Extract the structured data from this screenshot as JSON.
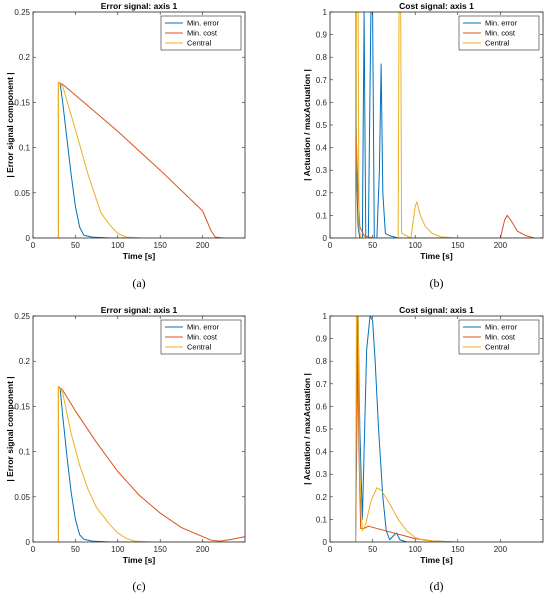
{
  "colors": {
    "min_error": "#0072BD",
    "min_cost": "#D95319",
    "central": "#EDB120"
  },
  "chart_data": [
    {
      "id": "a",
      "type": "line",
      "panel_label": "(a)",
      "title": "Error signal: axis 1",
      "xlabel": "Time [s]",
      "ylabel": "| Error signal component |",
      "xlim": [
        0,
        250
      ],
      "ylim": [
        0,
        0.25
      ],
      "xticks": [
        0,
        50,
        100,
        150,
        200
      ],
      "yticks": [
        0,
        0.05,
        0.1,
        0.15,
        0.2,
        0.25
      ],
      "ytick_labels": [
        "0",
        "0.05",
        "0.1",
        "0.15",
        "0.2",
        "0.25"
      ],
      "legend_position": "top-right",
      "grid": false,
      "series": [
        {
          "name": "Min. error",
          "color_key": "min_error",
          "points": [
            [
              0,
              0
            ],
            [
              30,
              0
            ],
            [
              30,
              0.172
            ],
            [
              32,
              0.171
            ],
            [
              35,
              0.15
            ],
            [
              40,
              0.11
            ],
            [
              45,
              0.07
            ],
            [
              50,
              0.035
            ],
            [
              55,
              0.012
            ],
            [
              60,
              0.003
            ],
            [
              70,
              0.001
            ],
            [
              90,
              0
            ],
            [
              250,
              0
            ]
          ]
        },
        {
          "name": "Min. cost",
          "color_key": "min_cost",
          "points": [
            [
              0,
              0
            ],
            [
              30,
              0
            ],
            [
              30,
              0.172
            ],
            [
              35,
              0.17
            ],
            [
              60,
              0.15
            ],
            [
              100,
              0.118
            ],
            [
              150,
              0.075
            ],
            [
              200,
              0.03
            ],
            [
              210,
              0.008
            ],
            [
              215,
              0.001
            ],
            [
              225,
              0
            ],
            [
              250,
              0
            ]
          ]
        },
        {
          "name": "Central",
          "color_key": "central",
          "points": [
            [
              0,
              0
            ],
            [
              30,
              0
            ],
            [
              30,
              0.172
            ],
            [
              35,
              0.168
            ],
            [
              50,
              0.12
            ],
            [
              65,
              0.07
            ],
            [
              80,
              0.028
            ],
            [
              90,
              0.015
            ],
            [
              100,
              0.005
            ],
            [
              110,
              0.001
            ],
            [
              130,
              0
            ],
            [
              250,
              0
            ]
          ]
        }
      ]
    },
    {
      "id": "b",
      "type": "line",
      "panel_label": "(b)",
      "title": "Cost signal: axis 1",
      "xlabel": "Time [s]",
      "ylabel": "| Actuation / maxActuation |",
      "xlim": [
        0,
        250
      ],
      "ylim": [
        0,
        1
      ],
      "xticks": [
        0,
        50,
        100,
        150,
        200
      ],
      "yticks": [
        0,
        0.1,
        0.2,
        0.3,
        0.4,
        0.5,
        0.6,
        0.7,
        0.8,
        0.9,
        1
      ],
      "ytick_labels": [
        "0",
        "0.1",
        "0.2",
        "0.3",
        "0.4",
        "0.5",
        "0.6",
        "0.7",
        "0.8",
        "0.9",
        "1"
      ],
      "legend_position": "top-right",
      "grid": false,
      "series": [
        {
          "name": "Min. error",
          "color_key": "min_error",
          "points": [
            [
              0,
              0
            ],
            [
              30,
              0
            ],
            [
              30.5,
              1
            ],
            [
              31,
              0.3
            ],
            [
              33,
              0.05
            ],
            [
              35,
              0
            ],
            [
              38,
              0
            ],
            [
              40,
              1
            ],
            [
              42,
              0
            ],
            [
              45,
              0
            ],
            [
              48,
              1
            ],
            [
              50,
              1
            ],
            [
              52,
              0
            ],
            [
              55,
              0
            ],
            [
              58,
              0.3
            ],
            [
              60,
              0.77
            ],
            [
              62,
              0.2
            ],
            [
              65,
              0.02
            ],
            [
              70,
              0.01
            ],
            [
              80,
              0
            ],
            [
              250,
              0
            ]
          ]
        },
        {
          "name": "Min. cost",
          "color_key": "min_cost",
          "points": [
            [
              0,
              0
            ],
            [
              30,
              0
            ],
            [
              30.5,
              0.5
            ],
            [
              32,
              0.3
            ],
            [
              35,
              0.05
            ],
            [
              40,
              0.01
            ],
            [
              50,
              0
            ],
            [
              200,
              0
            ],
            [
              205,
              0.08
            ],
            [
              208,
              0.1
            ],
            [
              212,
              0.08
            ],
            [
              220,
              0.03
            ],
            [
              230,
              0.01
            ],
            [
              240,
              0
            ],
            [
              250,
              0
            ]
          ]
        },
        {
          "name": "Central",
          "color_key": "central",
          "points": [
            [
              0,
              0
            ],
            [
              30,
              0
            ],
            [
              31,
              1
            ],
            [
              33,
              1
            ],
            [
              34,
              0.05
            ],
            [
              36,
              0
            ],
            [
              80,
              0
            ],
            [
              81,
              1
            ],
            [
              83,
              1
            ],
            [
              84,
              0.02
            ],
            [
              95,
              0
            ],
            [
              100,
              0.14
            ],
            [
              102,
              0.16
            ],
            [
              106,
              0.1
            ],
            [
              112,
              0.05
            ],
            [
              120,
              0.02
            ],
            [
              130,
              0.005
            ],
            [
              150,
              0
            ],
            [
              250,
              0
            ]
          ]
        }
      ]
    },
    {
      "id": "c",
      "type": "line",
      "panel_label": "(c)",
      "title": "Error signal: axis 1",
      "xlabel": "Time [s]",
      "ylabel": "| Error signal component |",
      "xlim": [
        0,
        250
      ],
      "ylim": [
        0,
        0.25
      ],
      "xticks": [
        0,
        50,
        100,
        150,
        200
      ],
      "yticks": [
        0,
        0.05,
        0.1,
        0.15,
        0.2,
        0.25
      ],
      "ytick_labels": [
        "0",
        "0.05",
        "0.1",
        "0.15",
        "0.2",
        "0.25"
      ],
      "legend_position": "top-right",
      "grid": false,
      "series": [
        {
          "name": "Min. error",
          "color_key": "min_error",
          "points": [
            [
              0,
              0
            ],
            [
              30,
              0
            ],
            [
              30,
              0.172
            ],
            [
              32,
              0.17
            ],
            [
              35,
              0.14
            ],
            [
              40,
              0.095
            ],
            [
              45,
              0.055
            ],
            [
              50,
              0.025
            ],
            [
              55,
              0.008
            ],
            [
              60,
              0.003
            ],
            [
              70,
              0.001
            ],
            [
              90,
              0
            ],
            [
              250,
              0
            ]
          ]
        },
        {
          "name": "Min. cost",
          "color_key": "min_cost",
          "points": [
            [
              0,
              0
            ],
            [
              30,
              0
            ],
            [
              30,
              0.172
            ],
            [
              35,
              0.168
            ],
            [
              50,
              0.145
            ],
            [
              75,
              0.11
            ],
            [
              100,
              0.078
            ],
            [
              125,
              0.052
            ],
            [
              150,
              0.032
            ],
            [
              175,
              0.016
            ],
            [
              200,
              0.006
            ],
            [
              210,
              0.002
            ],
            [
              220,
              0.001
            ],
            [
              235,
              0.003
            ],
            [
              250,
              0.006
            ]
          ]
        },
        {
          "name": "Central",
          "color_key": "central",
          "points": [
            [
              0,
              0
            ],
            [
              30,
              0
            ],
            [
              30,
              0.172
            ],
            [
              35,
              0.165
            ],
            [
              45,
              0.12
            ],
            [
              55,
              0.085
            ],
            [
              65,
              0.058
            ],
            [
              75,
              0.038
            ],
            [
              90,
              0.02
            ],
            [
              100,
              0.01
            ],
            [
              110,
              0.004
            ],
            [
              120,
              0.001
            ],
            [
              140,
              0
            ],
            [
              250,
              0
            ]
          ]
        }
      ]
    },
    {
      "id": "d",
      "type": "line",
      "panel_label": "(d)",
      "title": "Cost signal: axis 1",
      "xlabel": "Time [s]",
      "ylabel": "| Actuation / maxActuation |",
      "xlim": [
        0,
        250
      ],
      "ylim": [
        0,
        1
      ],
      "xticks": [
        0,
        50,
        100,
        150,
        200
      ],
      "yticks": [
        0,
        0.1,
        0.2,
        0.3,
        0.4,
        0.5,
        0.6,
        0.7,
        0.8,
        0.9,
        1
      ],
      "ytick_labels": [
        "0",
        "0.1",
        "0.2",
        "0.3",
        "0.4",
        "0.5",
        "0.6",
        "0.7",
        "0.8",
        "0.9",
        "1"
      ],
      "legend_position": "top-right",
      "grid": false,
      "series": [
        {
          "name": "Min. error",
          "color_key": "min_error",
          "points": [
            [
              0,
              0
            ],
            [
              30,
              0
            ],
            [
              33,
              1
            ],
            [
              35,
              0.5
            ],
            [
              38,
              0.1
            ],
            [
              40,
              0.4
            ],
            [
              43,
              0.85
            ],
            [
              47,
              1
            ],
            [
              50,
              0.98
            ],
            [
              53,
              0.8
            ],
            [
              57,
              0.5
            ],
            [
              62,
              0.2
            ],
            [
              66,
              0.05
            ],
            [
              70,
              0.01
            ],
            [
              75,
              0.03
            ],
            [
              78,
              0.04
            ],
            [
              82,
              0.01
            ],
            [
              90,
              0
            ],
            [
              250,
              0
            ]
          ]
        },
        {
          "name": "Min. cost",
          "color_key": "min_cost",
          "points": [
            [
              0,
              0
            ],
            [
              30,
              0
            ],
            [
              32,
              1
            ],
            [
              34,
              0.4
            ],
            [
              36,
              0.06
            ],
            [
              40,
              0.06
            ],
            [
              45,
              0.07
            ],
            [
              55,
              0.06
            ],
            [
              65,
              0.05
            ],
            [
              75,
              0.04
            ],
            [
              85,
              0.03
            ],
            [
              100,
              0.015
            ],
            [
              120,
              0.005
            ],
            [
              150,
              0
            ],
            [
              250,
              0
            ]
          ]
        },
        {
          "name": "Central",
          "color_key": "central",
          "points": [
            [
              0,
              0
            ],
            [
              30,
              0
            ],
            [
              31,
              1
            ],
            [
              33,
              1
            ],
            [
              35,
              0.3
            ],
            [
              38,
              0.05
            ],
            [
              42,
              0.08
            ],
            [
              48,
              0.18
            ],
            [
              55,
              0.24
            ],
            [
              60,
              0.23
            ],
            [
              70,
              0.17
            ],
            [
              80,
              0.1
            ],
            [
              90,
              0.05
            ],
            [
              100,
              0.02
            ],
            [
              110,
              0.008
            ],
            [
              130,
              0.002
            ],
            [
              150,
              0
            ],
            [
              250,
              0
            ]
          ]
        }
      ]
    }
  ]
}
